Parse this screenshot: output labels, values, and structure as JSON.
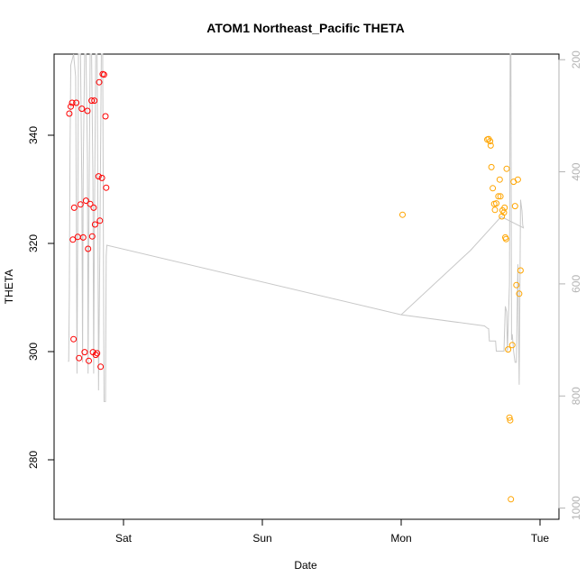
{
  "chart_data": {
    "type": "scatter",
    "title": "ATOM1 Northeast_Pacific THETA",
    "xlabel": "Date",
    "ylabel": "THETA",
    "x_ticks": [
      {
        "label": "Sat",
        "day": 1.0
      },
      {
        "label": "Sun",
        "day": 2.0
      },
      {
        "label": "Mon",
        "day": 3.0
      },
      {
        "label": "Tue",
        "day": 4.0
      }
    ],
    "xlim_days": [
      0.57,
      4.1
    ],
    "ylim": [
      269,
      355
    ],
    "y_ticks": [
      280,
      300,
      320,
      340
    ],
    "secondary_axis": {
      "ticks": [
        200,
        400,
        600,
        800,
        1000
      ],
      "range_top_to_bottom": [
        190,
        1020
      ],
      "color": "#b3b3b3"
    },
    "series": [
      {
        "color": "#ff0000",
        "points": [
          [
            0.61,
            344
          ],
          [
            0.62,
            345.3
          ],
          [
            0.63,
            346
          ],
          [
            0.635,
            320.7
          ],
          [
            0.64,
            302.3
          ],
          [
            0.645,
            326.6
          ],
          [
            0.66,
            346
          ],
          [
            0.67,
            321.2
          ],
          [
            0.68,
            298.8
          ],
          [
            0.69,
            327.2
          ],
          [
            0.7,
            344.9
          ],
          [
            0.71,
            321.1
          ],
          [
            0.72,
            299.9
          ],
          [
            0.73,
            327.9
          ],
          [
            0.74,
            344.5
          ],
          [
            0.745,
            319
          ],
          [
            0.75,
            298.3
          ],
          [
            0.76,
            327.3
          ],
          [
            0.77,
            346.4
          ],
          [
            0.775,
            321.3
          ],
          [
            0.78,
            299.9
          ],
          [
            0.785,
            326.6
          ],
          [
            0.79,
            346.4
          ],
          [
            0.795,
            323.5
          ],
          [
            0.8,
            299.4
          ],
          [
            0.81,
            299.7
          ],
          [
            0.82,
            332.4
          ],
          [
            0.825,
            349.8
          ],
          [
            0.83,
            324.2
          ],
          [
            0.835,
            297.2
          ],
          [
            0.845,
            332.1
          ],
          [
            0.85,
            351.3
          ],
          [
            0.86,
            351.2
          ],
          [
            0.87,
            343.5
          ],
          [
            0.875,
            330.3
          ]
        ]
      },
      {
        "color": "#ffa500",
        "points": [
          [
            3.01,
            325.3
          ],
          [
            3.62,
            339.2
          ],
          [
            3.63,
            339.3
          ],
          [
            3.64,
            338.9
          ],
          [
            3.645,
            338.1
          ],
          [
            3.65,
            334.1
          ],
          [
            3.66,
            330.2
          ],
          [
            3.67,
            327.3
          ],
          [
            3.675,
            326.2
          ],
          [
            3.685,
            327.4
          ],
          [
            3.7,
            328.7
          ],
          [
            3.71,
            331.8
          ],
          [
            3.715,
            328.7
          ],
          [
            3.725,
            325
          ],
          [
            3.73,
            326.1
          ],
          [
            3.74,
            325.7
          ],
          [
            3.745,
            326.6
          ],
          [
            3.75,
            321.1
          ],
          [
            3.755,
            320.8
          ],
          [
            3.76,
            333.8
          ],
          [
            3.77,
            300.4
          ],
          [
            3.78,
            287.8
          ],
          [
            3.785,
            287.3
          ],
          [
            3.79,
            272.7
          ],
          [
            3.8,
            301.2
          ],
          [
            3.81,
            331.4
          ],
          [
            3.82,
            326.9
          ],
          [
            3.83,
            312.3
          ],
          [
            3.84,
            331.8
          ],
          [
            3.85,
            310.7
          ],
          [
            3.86,
            315
          ]
        ]
      },
      {
        "color": "#c8c8c8",
        "axis": "secondary",
        "points": [
          [
            0.6,
            738
          ],
          [
            0.605,
            738
          ],
          [
            0.61,
            620
          ],
          [
            0.615,
            360
          ],
          [
            0.62,
            210
          ],
          [
            0.64,
            185
          ],
          [
            0.655,
            230
          ],
          [
            0.66,
            460
          ],
          [
            0.665,
            760
          ],
          [
            0.67,
            520
          ],
          [
            0.675,
            185
          ],
          [
            0.69,
            185
          ],
          [
            0.7,
            430
          ],
          [
            0.705,
            740
          ],
          [
            0.71,
            400
          ],
          [
            0.72,
            185
          ],
          [
            0.73,
            185
          ],
          [
            0.74,
            380
          ],
          [
            0.745,
            760
          ],
          [
            0.75,
            520
          ],
          [
            0.76,
            185
          ],
          [
            0.77,
            185
          ],
          [
            0.78,
            420
          ],
          [
            0.785,
            760
          ],
          [
            0.79,
            500
          ],
          [
            0.8,
            185
          ],
          [
            0.81,
            185
          ],
          [
            0.815,
            440
          ],
          [
            0.82,
            790
          ],
          [
            0.83,
            530
          ],
          [
            0.84,
            185
          ],
          [
            0.85,
            185
          ],
          [
            0.86,
            810
          ],
          [
            0.87,
            810
          ],
          [
            0.875,
            550
          ],
          [
            0.88,
            531
          ],
          [
            3.0,
            655
          ],
          [
            3.6,
            675
          ],
          [
            3.62,
            679
          ],
          [
            3.63,
            680
          ],
          [
            3.635,
            702
          ],
          [
            3.66,
            702
          ],
          [
            3.665,
            702
          ],
          [
            3.68,
            702
          ],
          [
            3.685,
            720
          ],
          [
            3.71,
            720
          ],
          [
            3.715,
            720
          ],
          [
            3.74,
            720
          ],
          [
            3.75,
            640
          ],
          [
            3.76,
            650
          ],
          [
            3.765,
            720
          ],
          [
            3.77,
            680
          ],
          [
            3.78,
            600
          ],
          [
            3.785,
            185
          ],
          [
            3.79,
            185
          ],
          [
            3.795,
            700
          ],
          [
            3.8,
            690
          ],
          [
            3.81,
            720
          ],
          [
            3.82,
            740
          ],
          [
            3.83,
            740
          ],
          [
            3.84,
            565
          ],
          [
            3.85,
            780
          ],
          [
            3.86,
            450
          ],
          [
            3.87,
            470
          ],
          [
            3.875,
            495
          ],
          [
            3.88,
            500
          ],
          [
            3.72,
            480
          ],
          [
            3.5,
            540
          ],
          [
            3.0,
            655
          ]
        ]
      }
    ]
  }
}
